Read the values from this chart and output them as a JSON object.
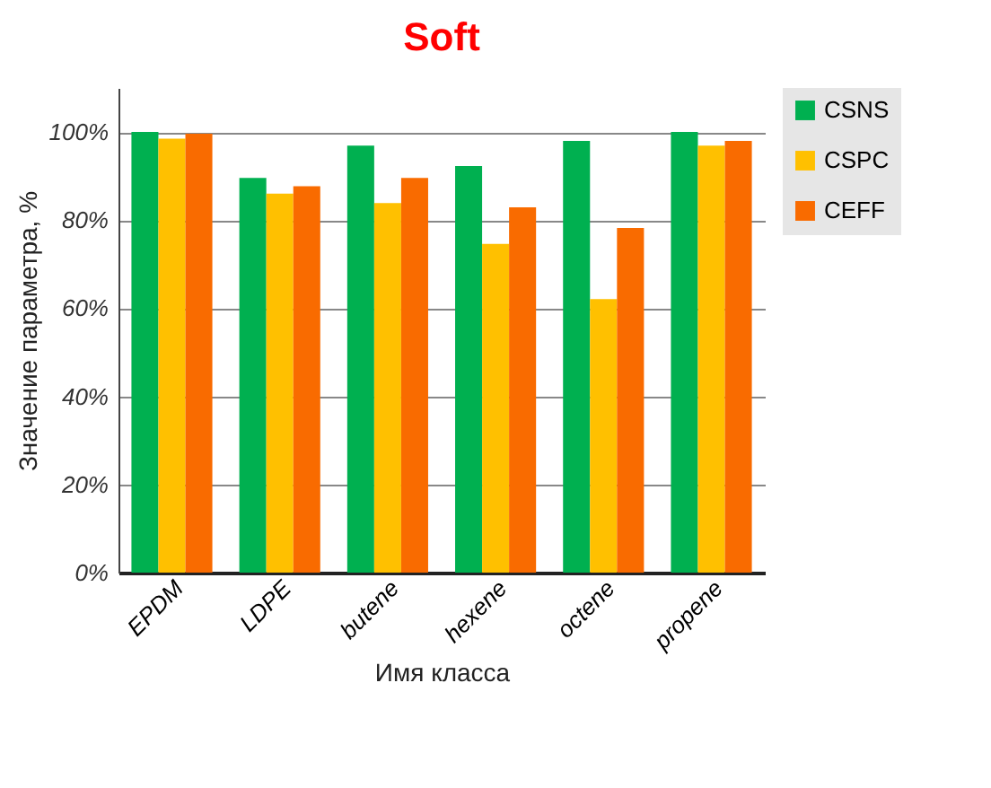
{
  "chart_data": {
    "type": "bar",
    "title": "Soft",
    "xlabel": "Имя класса",
    "ylabel": "Значение параметра, %",
    "categories": [
      "EPDM",
      "LDPE",
      "butene",
      "hexene",
      "octene",
      "propene"
    ],
    "series": [
      {
        "name": "CSNS",
        "color": "#00b050",
        "values": [
          100,
          89.6,
          96.9,
          92.3,
          98.0,
          100
        ]
      },
      {
        "name": "CSPC",
        "color": "#ffc000",
        "values": [
          98.5,
          86.0,
          83.9,
          74.6,
          62.1,
          96.9
        ]
      },
      {
        "name": "CEFF",
        "color": "#f96b00",
        "values": [
          99.6,
          87.7,
          89.6,
          82.9,
          78.2,
          98.0
        ]
      }
    ],
    "ylim": [
      0,
      110
    ],
    "yticks": [
      {
        "value": 0,
        "label": "0%"
      },
      {
        "value": 20,
        "label": "20%"
      },
      {
        "value": 40,
        "label": "40%"
      },
      {
        "value": 60,
        "label": "60%"
      },
      {
        "value": 80,
        "label": "80%"
      },
      {
        "value": 100,
        "label": "100%"
      }
    ],
    "grid": "y",
    "legend": "right"
  }
}
